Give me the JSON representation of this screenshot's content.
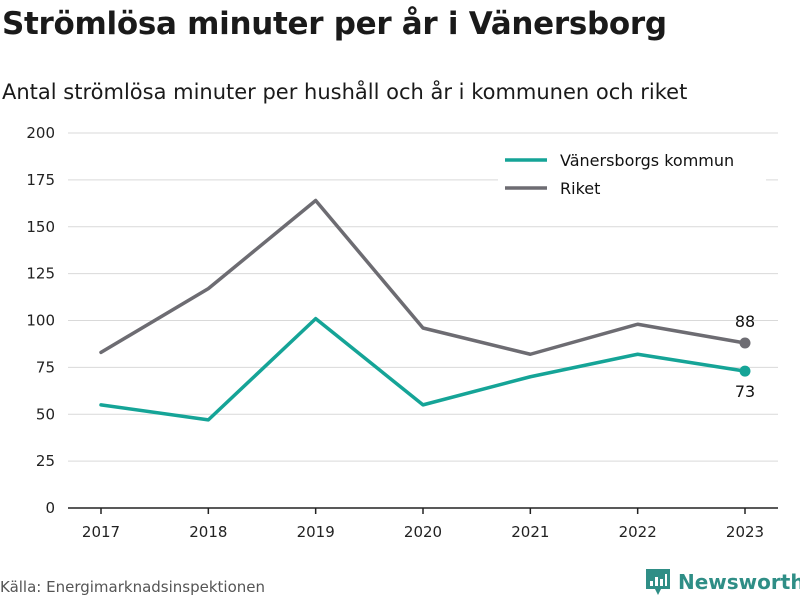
{
  "title": "Strömlösa minuter per år i Vänersborg",
  "subtitle": "Antal strömlösa minuter per hushåll och år i kommunen och riket",
  "source": "Källa: Energimarknadsinspektionen",
  "brand": "Newsworthy",
  "colors": {
    "kommun": "#15a497",
    "riket": "#6d6c72",
    "grid": "#d9d9d9",
    "brand": "#2f8e86"
  },
  "chart_data": {
    "type": "line",
    "categories": [
      "2017",
      "2018",
      "2019",
      "2020",
      "2021",
      "2022",
      "2023"
    ],
    "ylim": [
      0,
      200
    ],
    "yticks": [
      0,
      25,
      50,
      75,
      100,
      125,
      150,
      175,
      200
    ],
    "grid": true,
    "legend": "top-right",
    "series": [
      {
        "name": "Vänersborgs kommun",
        "values": [
          55,
          47,
          101,
          55,
          70,
          82,
          73
        ],
        "color": "#15a497",
        "end_label": "73"
      },
      {
        "name": "Riket",
        "values": [
          83,
          117,
          164,
          96,
          82,
          98,
          88
        ],
        "color": "#6d6c72",
        "end_label": "88"
      }
    ]
  }
}
